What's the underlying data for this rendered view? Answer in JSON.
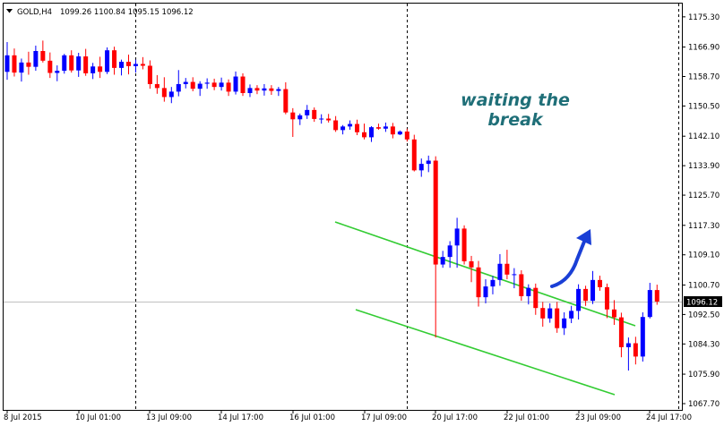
{
  "header": {
    "symbol_label": "GOLD,H4",
    "ohlc_text": "1099.26 1100.84 1095.15 1096.12"
  },
  "annotation": {
    "line1": "waiting the",
    "line2": "break"
  },
  "current_price": {
    "label": "1096.12",
    "value": 1096.12
  },
  "colors": {
    "bull": "#0000ff",
    "bear": "#ff0000",
    "channel": "#33cc33",
    "arrow": "#1a3fd6",
    "annotation": "#1f6f78",
    "grid_separator": "#000000",
    "current_price_bg": "#000000"
  },
  "icons": {
    "menu": "triangle-down-icon",
    "arrow": "curved-up-arrow-icon"
  },
  "chart_data": {
    "type": "candlestick",
    "title": "GOLD,H4",
    "ylim": [
      1067.7,
      1178.0
    ],
    "y_ticks": [
      "1175.30",
      "1166.90",
      "1158.70",
      "1150.50",
      "1142.10",
      "1133.90",
      "1125.70",
      "1117.30",
      "1109.10",
      "1100.70",
      "1092.50",
      "1084.30",
      "1075.90",
      "1067.70"
    ],
    "x_tick_labels": [
      "8 Jul 2015",
      "10 Jul 01:00",
      "13 Jul 09:00",
      "14 Jul 17:00",
      "16 Jul 01:00",
      "17 Jul 09:00",
      "20 Jul 17:00",
      "22 Jul 01:00",
      "23 Jul 09:00",
      "24 Jul 17:00"
    ],
    "x_tick_index": [
      0,
      10,
      20,
      30,
      40,
      50,
      60,
      70,
      80,
      90
    ],
    "session_separator_index": [
      18,
      56,
      94
    ],
    "candles": [
      {
        "o": 1160.0,
        "h": 1168.3,
        "l": 1157.8,
        "c": 1164.6
      },
      {
        "o": 1164.6,
        "h": 1166.5,
        "l": 1158.7,
        "c": 1159.8
      },
      {
        "o": 1159.8,
        "h": 1163.7,
        "l": 1157.3,
        "c": 1162.6
      },
      {
        "o": 1162.6,
        "h": 1165.6,
        "l": 1159.2,
        "c": 1161.4
      },
      {
        "o": 1161.4,
        "h": 1167.3,
        "l": 1160.3,
        "c": 1165.8
      },
      {
        "o": 1165.8,
        "h": 1168.7,
        "l": 1162.6,
        "c": 1163.1
      },
      {
        "o": 1163.1,
        "h": 1165.4,
        "l": 1158.3,
        "c": 1159.7
      },
      {
        "o": 1159.7,
        "h": 1161.8,
        "l": 1157.4,
        "c": 1160.3
      },
      {
        "o": 1160.3,
        "h": 1165.0,
        "l": 1159.5,
        "c": 1164.6
      },
      {
        "o": 1164.6,
        "h": 1166.0,
        "l": 1159.8,
        "c": 1160.4
      },
      {
        "o": 1160.4,
        "h": 1165.3,
        "l": 1158.6,
        "c": 1164.3
      },
      {
        "o": 1164.3,
        "h": 1166.4,
        "l": 1158.9,
        "c": 1159.6
      },
      {
        "o": 1159.6,
        "h": 1162.5,
        "l": 1158.0,
        "c": 1161.5
      },
      {
        "o": 1161.5,
        "h": 1164.2,
        "l": 1158.3,
        "c": 1160.0
      },
      {
        "o": 1160.0,
        "h": 1166.8,
        "l": 1159.4,
        "c": 1166.0
      },
      {
        "o": 1166.0,
        "h": 1167.0,
        "l": 1159.2,
        "c": 1161.1
      },
      {
        "o": 1161.1,
        "h": 1163.4,
        "l": 1159.0,
        "c": 1162.8
      },
      {
        "o": 1162.8,
        "h": 1164.8,
        "l": 1159.3,
        "c": 1161.6
      },
      {
        "o": 1161.6,
        "h": 1163.4,
        "l": 1159.8,
        "c": 1162.2
      },
      {
        "o": 1162.2,
        "h": 1164.1,
        "l": 1160.7,
        "c": 1161.7
      },
      {
        "o": 1161.7,
        "h": 1163.2,
        "l": 1155.3,
        "c": 1156.6
      },
      {
        "o": 1156.6,
        "h": 1159.1,
        "l": 1153.9,
        "c": 1155.5
      },
      {
        "o": 1155.5,
        "h": 1158.5,
        "l": 1151.7,
        "c": 1153.0
      },
      {
        "o": 1153.0,
        "h": 1155.8,
        "l": 1151.3,
        "c": 1154.5
      },
      {
        "o": 1154.5,
        "h": 1160.5,
        "l": 1153.2,
        "c": 1156.6
      },
      {
        "o": 1156.6,
        "h": 1158.3,
        "l": 1155.4,
        "c": 1157.2
      },
      {
        "o": 1157.2,
        "h": 1158.5,
        "l": 1154.6,
        "c": 1155.3
      },
      {
        "o": 1155.3,
        "h": 1157.4,
        "l": 1153.3,
        "c": 1156.7
      },
      {
        "o": 1156.7,
        "h": 1158.2,
        "l": 1155.3,
        "c": 1157.0
      },
      {
        "o": 1157.0,
        "h": 1158.1,
        "l": 1154.9,
        "c": 1155.8
      },
      {
        "o": 1155.8,
        "h": 1158.4,
        "l": 1154.8,
        "c": 1157.0
      },
      {
        "o": 1157.0,
        "h": 1157.9,
        "l": 1153.3,
        "c": 1154.5
      },
      {
        "o": 1154.5,
        "h": 1160.1,
        "l": 1153.7,
        "c": 1158.7
      },
      {
        "o": 1158.7,
        "h": 1159.6,
        "l": 1153.3,
        "c": 1154.1
      },
      {
        "o": 1154.1,
        "h": 1156.5,
        "l": 1153.0,
        "c": 1155.5
      },
      {
        "o": 1155.5,
        "h": 1156.3,
        "l": 1153.8,
        "c": 1154.8
      },
      {
        "o": 1154.8,
        "h": 1156.6,
        "l": 1153.4,
        "c": 1155.4
      },
      {
        "o": 1155.4,
        "h": 1156.3,
        "l": 1153.6,
        "c": 1154.7
      },
      {
        "o": 1154.7,
        "h": 1155.8,
        "l": 1153.3,
        "c": 1155.2
      },
      {
        "o": 1155.2,
        "h": 1157.1,
        "l": 1148.2,
        "c": 1148.7
      },
      {
        "o": 1148.7,
        "h": 1149.9,
        "l": 1141.9,
        "c": 1146.8
      },
      {
        "o": 1146.8,
        "h": 1148.4,
        "l": 1145.2,
        "c": 1147.9
      },
      {
        "o": 1147.9,
        "h": 1150.8,
        "l": 1146.9,
        "c": 1149.4
      },
      {
        "o": 1149.4,
        "h": 1150.1,
        "l": 1146.1,
        "c": 1146.9
      },
      {
        "o": 1146.9,
        "h": 1148.2,
        "l": 1145.6,
        "c": 1147.0
      },
      {
        "o": 1147.0,
        "h": 1148.3,
        "l": 1145.9,
        "c": 1146.5
      },
      {
        "o": 1146.5,
        "h": 1147.7,
        "l": 1143.3,
        "c": 1143.8
      },
      {
        "o": 1143.8,
        "h": 1145.2,
        "l": 1142.6,
        "c": 1144.8
      },
      {
        "o": 1144.8,
        "h": 1146.5,
        "l": 1143.9,
        "c": 1145.5
      },
      {
        "o": 1145.5,
        "h": 1146.7,
        "l": 1142.4,
        "c": 1143.2
      },
      {
        "o": 1143.2,
        "h": 1145.6,
        "l": 1141.2,
        "c": 1141.8
      },
      {
        "o": 1141.8,
        "h": 1144.9,
        "l": 1140.5,
        "c": 1144.6
      },
      {
        "o": 1144.6,
        "h": 1145.6,
        "l": 1143.9,
        "c": 1144.2
      },
      {
        "o": 1144.2,
        "h": 1145.9,
        "l": 1143.3,
        "c": 1144.8
      },
      {
        "o": 1144.8,
        "h": 1145.8,
        "l": 1141.5,
        "c": 1142.6
      },
      {
        "o": 1142.6,
        "h": 1143.7,
        "l": 1142.4,
        "c": 1143.4
      },
      {
        "o": 1143.4,
        "h": 1144.2,
        "l": 1140.6,
        "c": 1141.2
      },
      {
        "o": 1141.2,
        "h": 1142.5,
        "l": 1132.3,
        "c": 1132.6
      },
      {
        "o": 1132.6,
        "h": 1135.9,
        "l": 1130.8,
        "c": 1134.4
      },
      {
        "o": 1134.4,
        "h": 1136.7,
        "l": 1132.1,
        "c": 1135.3
      },
      {
        "o": 1135.3,
        "h": 1136.5,
        "l": 1086.1,
        "c": 1106.4
      },
      {
        "o": 1106.4,
        "h": 1110.2,
        "l": 1105.5,
        "c": 1108.5
      },
      {
        "o": 1108.5,
        "h": 1112.9,
        "l": 1105.5,
        "c": 1111.7
      },
      {
        "o": 1111.7,
        "h": 1119.4,
        "l": 1105.5,
        "c": 1116.4
      },
      {
        "o": 1116.4,
        "h": 1117.3,
        "l": 1106.4,
        "c": 1107.3
      },
      {
        "o": 1107.3,
        "h": 1108.8,
        "l": 1101.5,
        "c": 1105.6
      },
      {
        "o": 1105.6,
        "h": 1107.4,
        "l": 1094.7,
        "c": 1097.3
      },
      {
        "o": 1097.3,
        "h": 1102.3,
        "l": 1095.6,
        "c": 1100.3
      },
      {
        "o": 1100.3,
        "h": 1103.2,
        "l": 1098.1,
        "c": 1102.1
      },
      {
        "o": 1102.1,
        "h": 1109.3,
        "l": 1100.5,
        "c": 1106.6
      },
      {
        "o": 1106.6,
        "h": 1110.5,
        "l": 1102.3,
        "c": 1103.6
      },
      {
        "o": 1103.6,
        "h": 1105.4,
        "l": 1099.8,
        "c": 1103.7
      },
      {
        "o": 1103.7,
        "h": 1104.8,
        "l": 1096.3,
        "c": 1097.6
      },
      {
        "o": 1097.6,
        "h": 1100.9,
        "l": 1095.3,
        "c": 1099.9
      },
      {
        "o": 1099.9,
        "h": 1101.1,
        "l": 1092.4,
        "c": 1094.3
      },
      {
        "o": 1094.3,
        "h": 1096.0,
        "l": 1089.1,
        "c": 1091.4
      },
      {
        "o": 1091.4,
        "h": 1095.6,
        "l": 1090.2,
        "c": 1094.2
      },
      {
        "o": 1094.2,
        "h": 1096.0,
        "l": 1087.4,
        "c": 1088.7
      },
      {
        "o": 1088.7,
        "h": 1093.1,
        "l": 1086.8,
        "c": 1091.4
      },
      {
        "o": 1091.4,
        "h": 1094.9,
        "l": 1090.1,
        "c": 1093.5
      },
      {
        "o": 1093.5,
        "h": 1100.9,
        "l": 1091.1,
        "c": 1099.6
      },
      {
        "o": 1099.6,
        "h": 1100.5,
        "l": 1094.9,
        "c": 1096.3
      },
      {
        "o": 1096.3,
        "h": 1104.6,
        "l": 1095.4,
        "c": 1102.1
      },
      {
        "o": 1102.1,
        "h": 1103.3,
        "l": 1099.1,
        "c": 1100.1
      },
      {
        "o": 1100.1,
        "h": 1101.1,
        "l": 1091.5,
        "c": 1093.9
      },
      {
        "o": 1093.9,
        "h": 1096.5,
        "l": 1089.6,
        "c": 1091.7
      },
      {
        "o": 1091.7,
        "h": 1093.0,
        "l": 1080.6,
        "c": 1083.4
      },
      {
        "o": 1083.4,
        "h": 1086.1,
        "l": 1076.9,
        "c": 1084.5
      },
      {
        "o": 1084.5,
        "h": 1086.3,
        "l": 1078.6,
        "c": 1080.8
      },
      {
        "o": 1080.8,
        "h": 1093.1,
        "l": 1079.4,
        "c": 1091.8
      },
      {
        "o": 1091.8,
        "h": 1101.3,
        "l": 1091.4,
        "c": 1099.3
      },
      {
        "o": 1099.3,
        "h": 1100.8,
        "l": 1095.2,
        "c": 1096.1
      }
    ]
  }
}
